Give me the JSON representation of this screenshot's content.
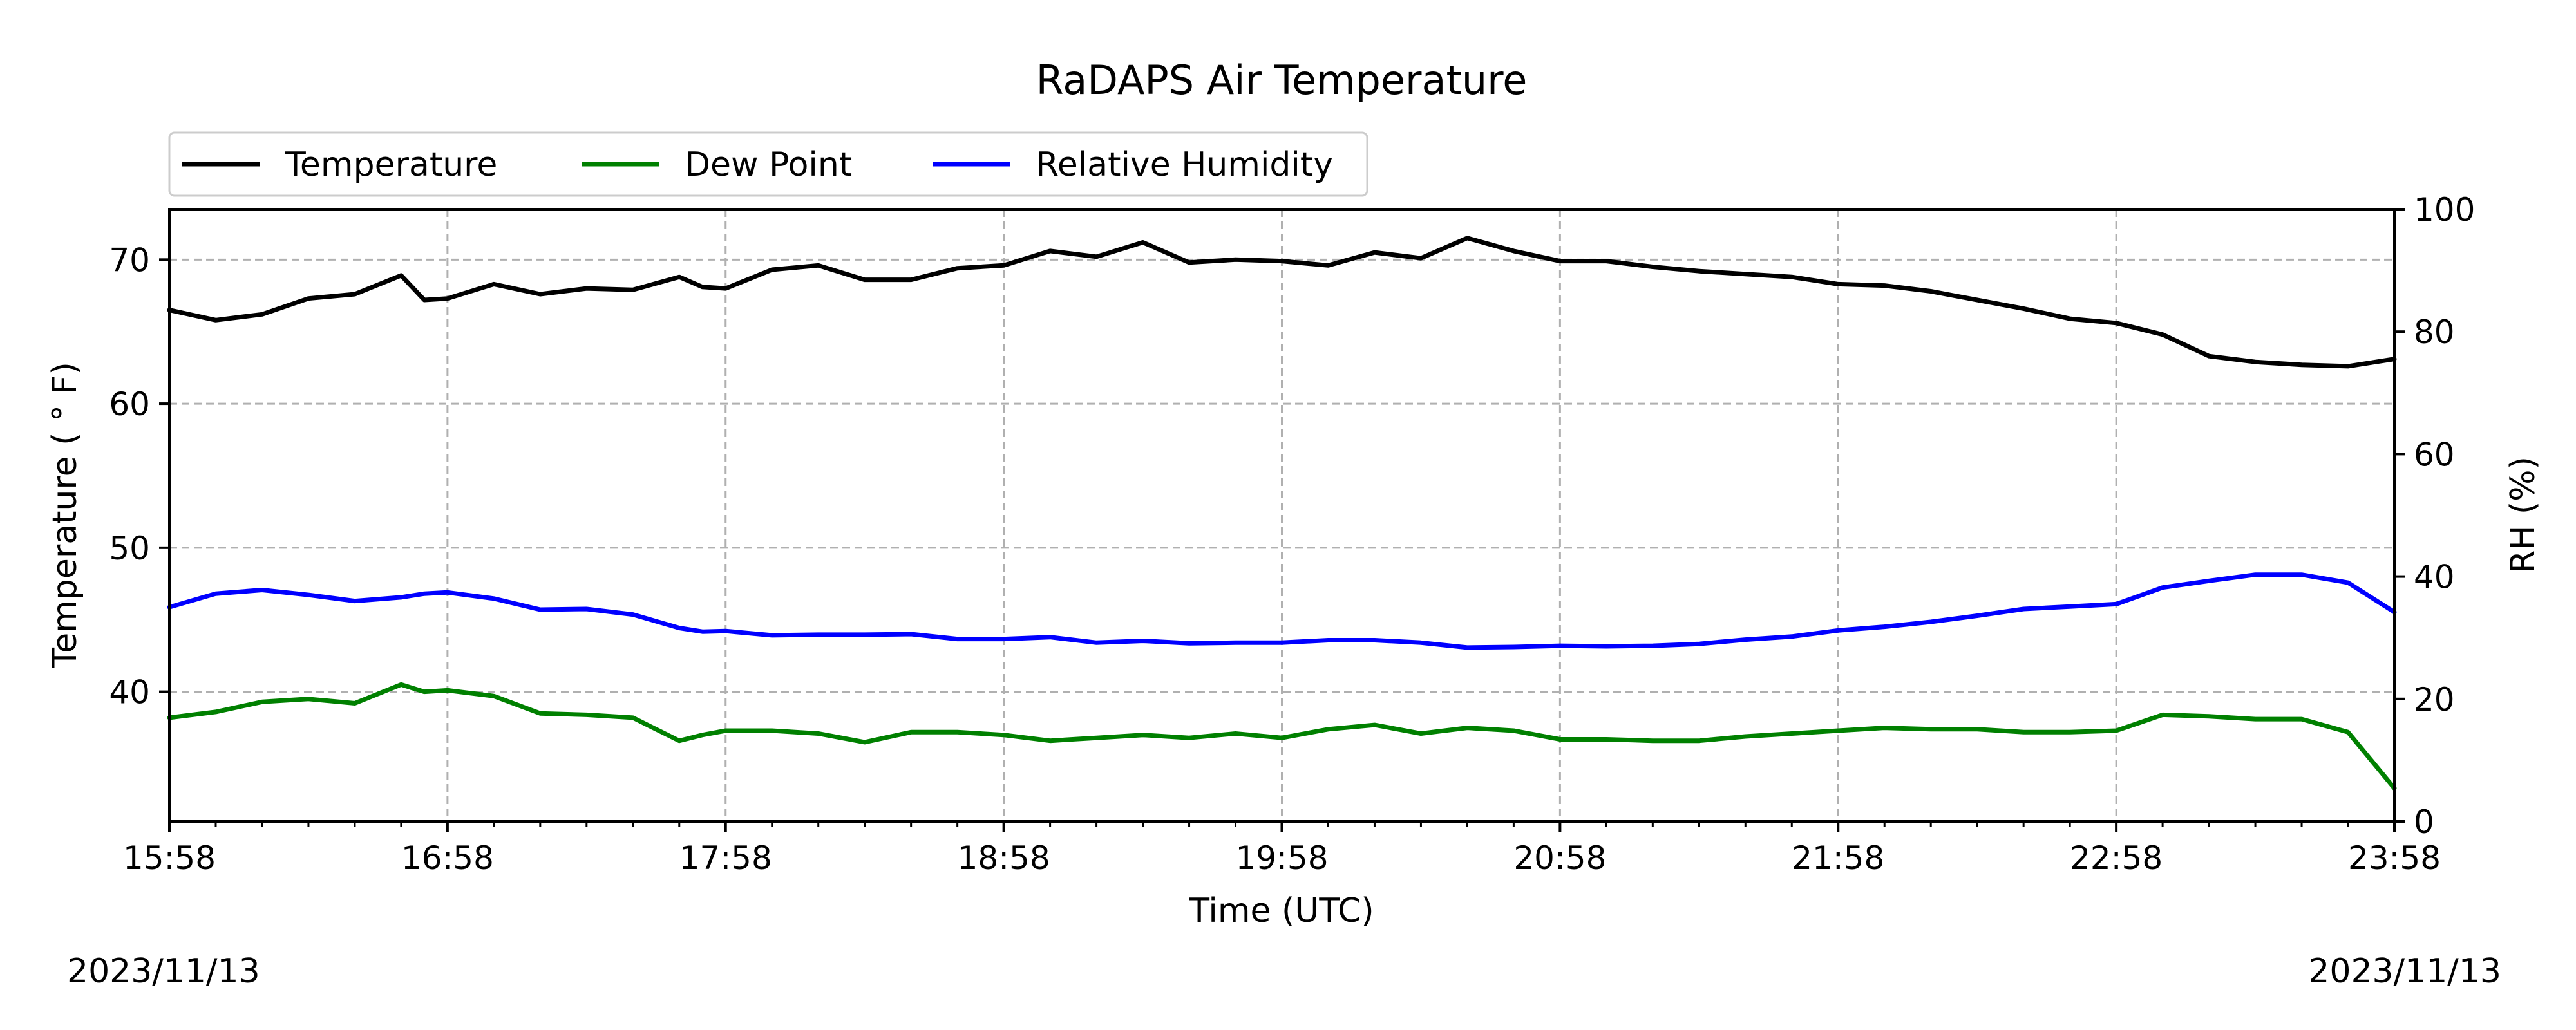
{
  "chart_data": {
    "type": "line",
    "title": "RaDAPS Air Temperature",
    "xlabel": "Time (UTC)",
    "ylabel_left": "Temperature ( ° F)",
    "ylabel_right": "RH (%)",
    "date_left": "2023/11/13",
    "date_right": "2023/11/13",
    "x_ticks": [
      "15:58",
      "16:58",
      "17:58",
      "18:58",
      "19:58",
      "20:58",
      "21:58",
      "22:58",
      "23:58"
    ],
    "x_range": [
      "15:58",
      "23:58"
    ],
    "ylim_left": [
      31,
      73.5
    ],
    "ylim_right": [
      0,
      100
    ],
    "y_ticks_left": [
      40,
      50,
      60,
      70
    ],
    "y_ticks_right": [
      0,
      20,
      40,
      60,
      80,
      100
    ],
    "grid": true,
    "legend_placement": "above plot, top-left",
    "series": [
      {
        "name": "Temperature",
        "axis": "left",
        "color": "#000000",
        "x": [
          "15:58",
          "16:08",
          "16:18",
          "16:28",
          "16:38",
          "16:48",
          "16:53",
          "16:58",
          "17:08",
          "17:18",
          "17:28",
          "17:38",
          "17:48",
          "17:53",
          "17:58",
          "18:08",
          "18:18",
          "18:28",
          "18:38",
          "18:48",
          "18:58",
          "19:08",
          "19:18",
          "19:28",
          "19:38",
          "19:48",
          "19:58",
          "20:08",
          "20:18",
          "20:28",
          "20:38",
          "20:48",
          "20:58",
          "21:08",
          "21:18",
          "21:28",
          "21:38",
          "21:48",
          "21:58",
          "22:08",
          "22:18",
          "22:28",
          "22:38",
          "22:48",
          "22:58",
          "23:08",
          "23:18",
          "23:28",
          "23:38",
          "23:48",
          "23:58"
        ],
        "values": [
          66.5,
          65.8,
          66.2,
          67.3,
          67.6,
          68.9,
          67.2,
          67.3,
          68.3,
          67.6,
          68.0,
          67.9,
          68.8,
          68.1,
          68.0,
          69.3,
          69.6,
          68.6,
          68.6,
          69.4,
          69.6,
          70.6,
          70.2,
          71.2,
          69.8,
          70.0,
          69.9,
          69.6,
          70.5,
          70.1,
          71.5,
          70.6,
          69.9,
          69.9,
          69.5,
          69.2,
          69.0,
          68.8,
          68.3,
          68.2,
          67.8,
          67.2,
          66.6,
          65.9,
          65.6,
          64.8,
          63.3,
          62.9,
          62.7,
          62.6,
          63.1
        ]
      },
      {
        "name": "Dew Point",
        "axis": "left",
        "color": "#008000",
        "x": [
          "15:58",
          "16:08",
          "16:18",
          "16:28",
          "16:38",
          "16:48",
          "16:53",
          "16:58",
          "17:08",
          "17:18",
          "17:28",
          "17:38",
          "17:48",
          "17:53",
          "17:58",
          "18:08",
          "18:18",
          "18:28",
          "18:38",
          "18:48",
          "18:58",
          "19:08",
          "19:18",
          "19:28",
          "19:38",
          "19:48",
          "19:58",
          "20:08",
          "20:18",
          "20:28",
          "20:38",
          "20:48",
          "20:58",
          "21:08",
          "21:18",
          "21:28",
          "21:38",
          "21:48",
          "21:58",
          "22:08",
          "22:18",
          "22:28",
          "22:38",
          "22:48",
          "22:58",
          "23:08",
          "23:18",
          "23:28",
          "23:38",
          "23:48",
          "23:58"
        ],
        "values": [
          38.2,
          38.6,
          39.3,
          39.5,
          39.2,
          40.5,
          40.0,
          40.1,
          39.7,
          38.5,
          38.4,
          38.2,
          36.6,
          37.0,
          37.3,
          37.3,
          37.1,
          36.5,
          37.2,
          37.2,
          37.0,
          36.6,
          36.8,
          37.0,
          36.8,
          37.1,
          36.8,
          37.4,
          37.7,
          37.1,
          37.5,
          37.3,
          36.7,
          36.7,
          36.6,
          36.6,
          36.9,
          37.1,
          37.3,
          37.5,
          37.4,
          37.4,
          37.2,
          37.2,
          37.3,
          38.4,
          38.3,
          38.1,
          38.1,
          37.2,
          33.3
        ]
      },
      {
        "name": "Relative Humidity",
        "axis": "right",
        "color": "#0000ff",
        "x": [
          "15:58",
          "16:08",
          "16:18",
          "16:28",
          "16:38",
          "16:48",
          "16:53",
          "16:58",
          "17:08",
          "17:18",
          "17:28",
          "17:38",
          "17:48",
          "17:53",
          "17:58",
          "18:08",
          "18:18",
          "18:28",
          "18:38",
          "18:48",
          "18:58",
          "19:08",
          "19:18",
          "19:28",
          "19:38",
          "19:48",
          "19:58",
          "20:08",
          "20:18",
          "20:28",
          "20:38",
          "20:48",
          "20:58",
          "21:08",
          "21:18",
          "21:28",
          "21:38",
          "21:48",
          "21:58",
          "22:08",
          "22:18",
          "22:28",
          "22:38",
          "22:48",
          "22:58",
          "23:08",
          "23:18",
          "23:28",
          "23:38",
          "23:48",
          "23:58"
        ],
        "values": [
          35.0,
          37.2,
          37.8,
          37.0,
          36.0,
          36.6,
          37.2,
          37.4,
          36.4,
          34.6,
          34.7,
          33.8,
          31.6,
          31.0,
          31.1,
          30.4,
          30.5,
          30.5,
          30.6,
          29.8,
          29.8,
          30.1,
          29.2,
          29.5,
          29.1,
          29.2,
          29.2,
          29.6,
          29.6,
          29.2,
          28.4,
          28.5,
          28.7,
          28.6,
          28.7,
          29.0,
          29.7,
          30.2,
          31.2,
          31.8,
          32.6,
          33.6,
          34.7,
          35.1,
          35.5,
          38.2,
          39.3,
          40.3,
          40.3,
          39.0,
          34.2
        ]
      }
    ]
  }
}
